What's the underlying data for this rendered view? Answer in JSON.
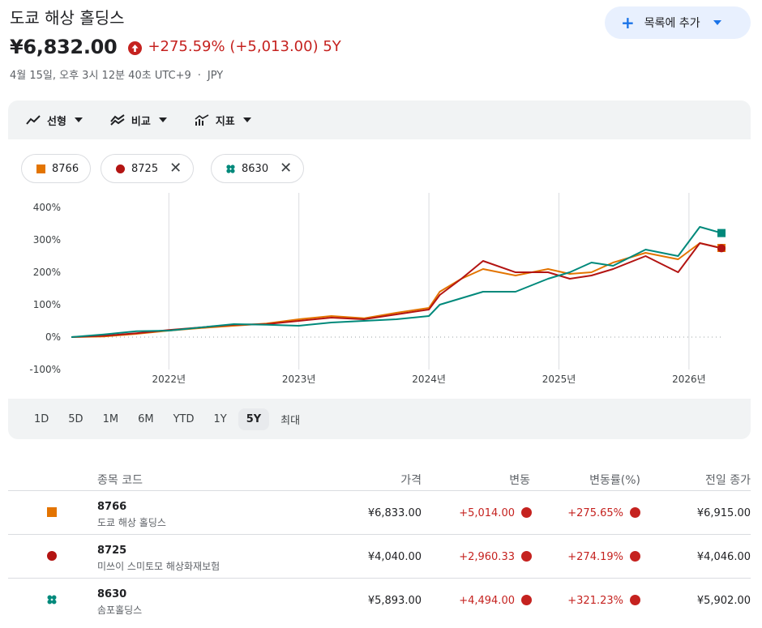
{
  "header": {
    "title": "도쿄 해상 홀딩스",
    "price": "¥6,832.00",
    "change": "+275.59% (+5,013.00) 5Y",
    "timestamp": "4월 15일, 오후 3시 12분 40초 UTC+9",
    "currency": "JPY",
    "watchlist_button": "목록에 추가"
  },
  "toolbar": {
    "linear": "선형",
    "compare": "비교",
    "indicators": "지표"
  },
  "chips": [
    {
      "label": "8766",
      "color": "#e37400"
    },
    {
      "label": "8725",
      "color": "#b31412"
    },
    {
      "label": "8630",
      "color": "#00897b"
    }
  ],
  "ranges": [
    "1D",
    "5D",
    "1M",
    "6M",
    "YTD",
    "1Y",
    "5Y",
    "최대"
  ],
  "active_range": "5Y",
  "chart_data": {
    "type": "line",
    "ylim": [
      -100,
      400
    ],
    "yticks": [
      "400%",
      "300%",
      "200%",
      "100%",
      "0%",
      "-100%"
    ],
    "xticks": [
      "2022년",
      "2023년",
      "2024년",
      "2025년",
      "2026년"
    ],
    "x": [
      "2021-04",
      "2021-07",
      "2021-10",
      "2022-01",
      "2022-04",
      "2022-07",
      "2022-10",
      "2023-01",
      "2023-04",
      "2023-07",
      "2023-10",
      "2024-01",
      "2024-02",
      "2024-04",
      "2024-06",
      "2024-09",
      "2024-12",
      "2025-02",
      "2025-04",
      "2025-06",
      "2025-09",
      "2025-12",
      "2026-02",
      "2026-04"
    ],
    "series": [
      {
        "name": "8766",
        "color": "#e37400",
        "values": [
          0,
          2,
          10,
          20,
          28,
          35,
          42,
          55,
          65,
          58,
          75,
          90,
          140,
          180,
          210,
          190,
          210,
          195,
          200,
          230,
          260,
          240,
          290,
          275
        ]
      },
      {
        "name": "8725",
        "color": "#b31412",
        "values": [
          0,
          4,
          12,
          22,
          30,
          38,
          40,
          50,
          60,
          55,
          70,
          85,
          130,
          180,
          235,
          200,
          200,
          180,
          190,
          210,
          250,
          200,
          290,
          274
        ]
      },
      {
        "name": "8630",
        "color": "#00897b",
        "values": [
          0,
          8,
          18,
          20,
          30,
          40,
          38,
          35,
          45,
          50,
          55,
          65,
          100,
          120,
          140,
          140,
          180,
          200,
          230,
          220,
          270,
          250,
          340,
          321
        ]
      }
    ]
  },
  "table": {
    "headers": {
      "symbol": "종목 코드",
      "price": "가격",
      "change": "변동",
      "pct": "변동률(%)",
      "prev": "전일 종가"
    },
    "rows": [
      {
        "code": "8766",
        "name": "도쿄 해상 홀딩스",
        "price": "¥6,833.00",
        "change": "+5,014.00",
        "pct": "+275.65%",
        "prev": "¥6,915.00",
        "color": "#e37400"
      },
      {
        "code": "8725",
        "name": "미쓰이 스미토모 해상화재보험",
        "price": "¥4,040.00",
        "change": "+2,960.33",
        "pct": "+274.19%",
        "prev": "¥4,046.00",
        "color": "#b31412"
      },
      {
        "code": "8630",
        "name": "솜포홀딩스",
        "price": "¥5,893.00",
        "change": "+4,494.00",
        "pct": "+321.23%",
        "prev": "¥5,902.00",
        "color": "#00897b"
      }
    ]
  }
}
